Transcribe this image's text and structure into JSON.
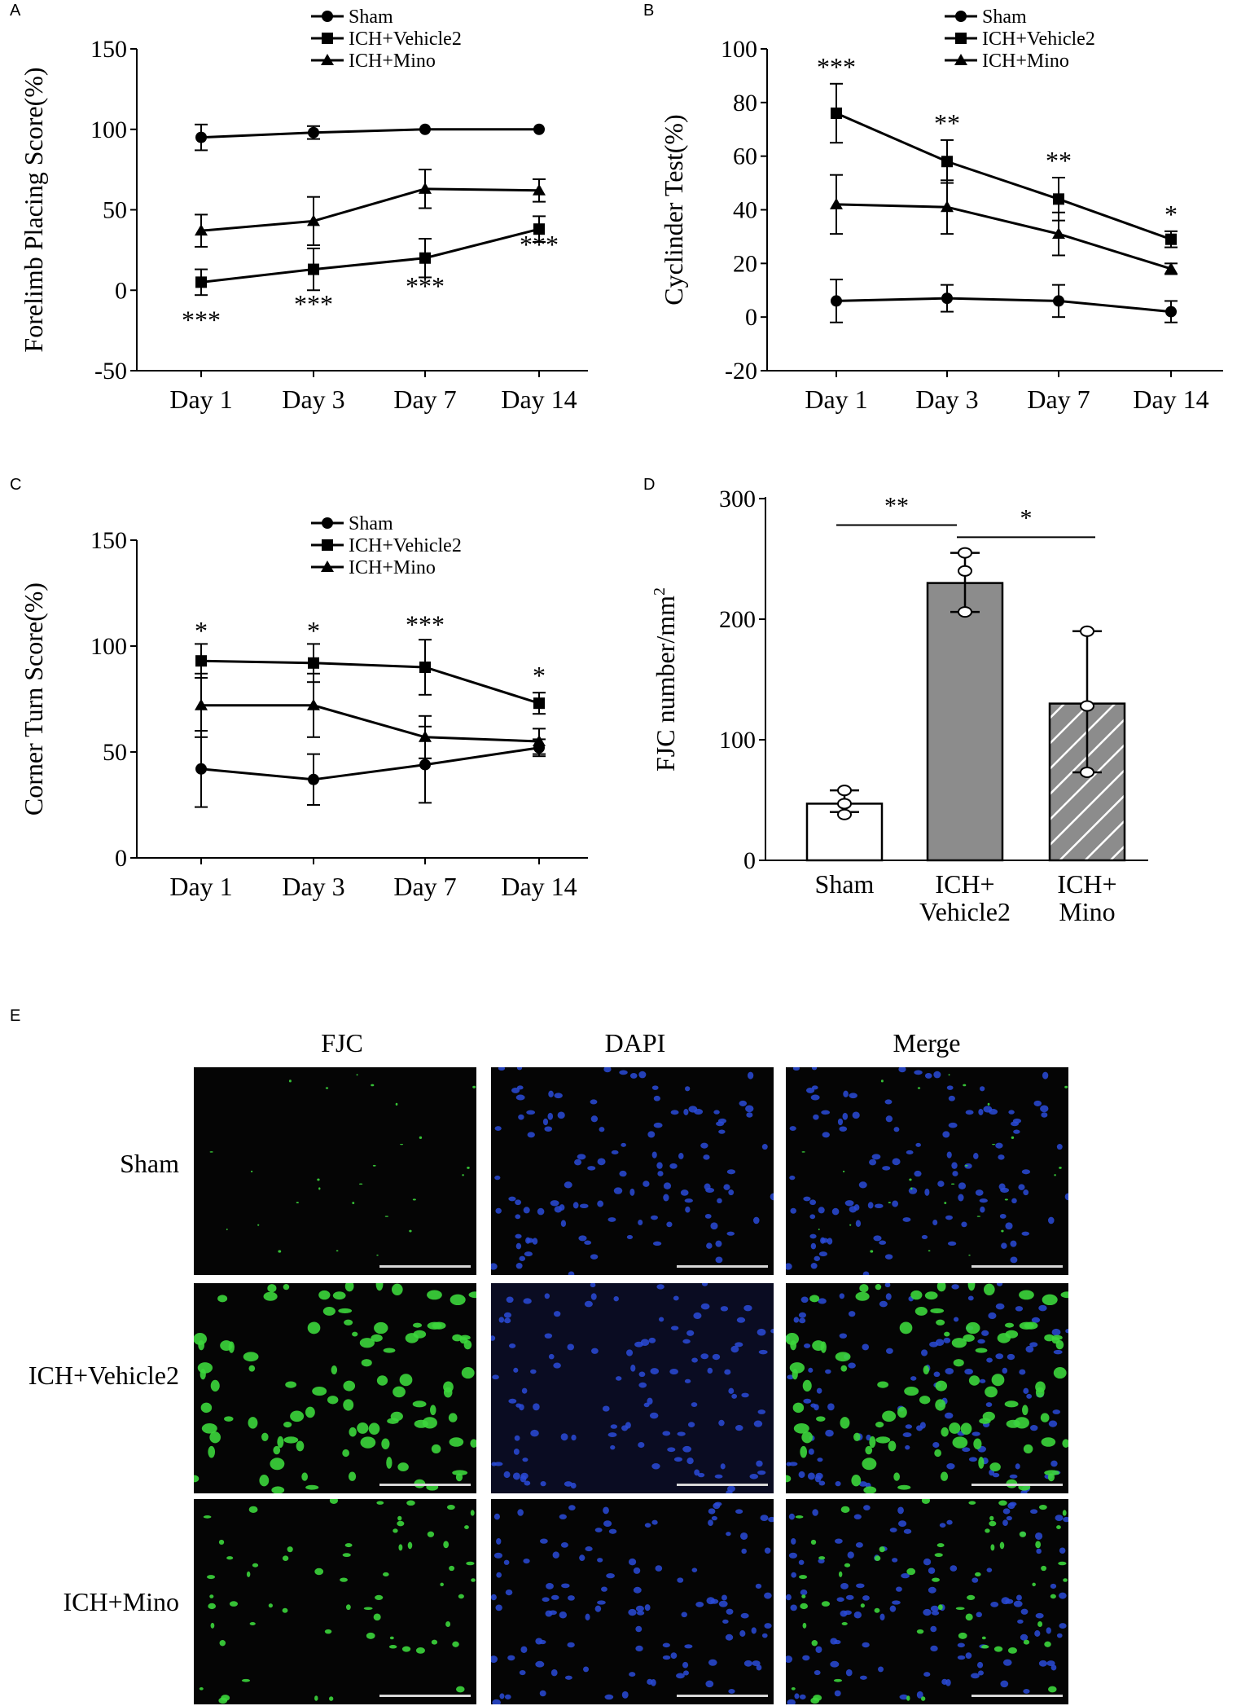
{
  "panels": {
    "A": "A",
    "B": "B",
    "C": "C",
    "D": "D",
    "E": "E"
  },
  "chart_data": [
    {
      "id": "A",
      "type": "line",
      "ylabel": "Forelimb Placing Score(%)",
      "categories": [
        "Day 1",
        "Day 3",
        "Day 7",
        "Day 14"
      ],
      "ylim": [
        -50,
        150
      ],
      "yticks": [
        -50,
        0,
        50,
        100,
        150
      ],
      "legend": [
        "Sham",
        "ICH+Vehicle2",
        "ICH+Mino"
      ],
      "series": [
        {
          "name": "Sham",
          "marker": "circle",
          "values": [
            95,
            98,
            100,
            100
          ],
          "err": [
            8,
            4,
            0,
            0
          ]
        },
        {
          "name": "ICH+Vehicle2",
          "marker": "square",
          "values": [
            5,
            13,
            20,
            38
          ],
          "err": [
            8,
            13,
            12,
            8
          ]
        },
        {
          "name": "ICH+Mino",
          "marker": "triangle",
          "values": [
            37,
            43,
            63,
            62
          ],
          "err": [
            10,
            15,
            12,
            7
          ]
        }
      ],
      "annotations": [
        {
          "text": "***",
          "x": 0,
          "y": -24
        },
        {
          "text": "***",
          "x": 1,
          "y": -14
        },
        {
          "text": "***",
          "x": 2,
          "y": -3
        },
        {
          "text": "***",
          "x": 3,
          "y": 23
        }
      ]
    },
    {
      "id": "B",
      "type": "line",
      "ylabel": "Cyclinder Test(%)",
      "categories": [
        "Day 1",
        "Day 3",
        "Day 7",
        "Day 14"
      ],
      "ylim": [
        -20,
        100
      ],
      "yticks": [
        -20,
        0,
        20,
        40,
        60,
        80,
        100
      ],
      "legend": [
        "Sham",
        "ICH+Vehicle2",
        "ICH+Mino"
      ],
      "series": [
        {
          "name": "Sham",
          "marker": "circle",
          "values": [
            6,
            7,
            6,
            2
          ],
          "err": [
            8,
            5,
            6,
            4
          ]
        },
        {
          "name": "ICH+Vehicle2",
          "marker": "square",
          "values": [
            76,
            58,
            44,
            29
          ],
          "err": [
            11,
            8,
            8,
            3
          ]
        },
        {
          "name": "ICH+Mino",
          "marker": "triangle",
          "values": [
            42,
            41,
            31,
            18
          ],
          "err": [
            11,
            10,
            8,
            2
          ]
        }
      ],
      "annotations": [
        {
          "text": "***",
          "x": 0,
          "y": 90
        },
        {
          "text": "**",
          "x": 1,
          "y": 69
        },
        {
          "text": "**",
          "x": 2,
          "y": 55
        },
        {
          "text": "*",
          "x": 3,
          "y": 35
        }
      ]
    },
    {
      "id": "C",
      "type": "line",
      "ylabel": "Corner Turn Score(%)",
      "categories": [
        "Day 1",
        "Day 3",
        "Day 7",
        "Day 14"
      ],
      "ylim": [
        0,
        150
      ],
      "yticks": [
        0,
        50,
        100,
        150
      ],
      "legend": [
        "Sham",
        "ICH+Vehicle2",
        "ICH+Mino"
      ],
      "series": [
        {
          "name": "Sham",
          "marker": "circle",
          "values": [
            42,
            37,
            44,
            52
          ],
          "err": [
            18,
            12,
            18,
            4
          ]
        },
        {
          "name": "ICH+Vehicle2",
          "marker": "square",
          "values": [
            93,
            92,
            90,
            73
          ],
          "err": [
            8,
            9,
            13,
            5
          ]
        },
        {
          "name": "ICH+Mino",
          "marker": "triangle",
          "values": [
            72,
            72,
            57,
            55
          ],
          "err": [
            15,
            15,
            10,
            6
          ]
        }
      ],
      "annotations": [
        {
          "text": "*",
          "x": 0,
          "y": 103
        },
        {
          "text": "*",
          "x": 1,
          "y": 103
        },
        {
          "text": "***",
          "x": 2,
          "y": 106
        },
        {
          "text": "*",
          "x": 3,
          "y": 82
        }
      ]
    },
    {
      "id": "D",
      "type": "bar",
      "ylabel": "FJC number/mm",
      "ylabel_sup": "2",
      "categories": [
        [
          "Sham"
        ],
        [
          "ICH+",
          "Vehicle2"
        ],
        [
          "ICH+",
          "Mino"
        ]
      ],
      "ylim": [
        0,
        300
      ],
      "yticks": [
        0,
        100,
        200,
        300
      ],
      "values": [
        47,
        230,
        130
      ],
      "err_upper": [
        58,
        255,
        190
      ],
      "err_lower": [
        40,
        206,
        73
      ],
      "points": [
        [
          58,
          47,
          38
        ],
        [
          255,
          240,
          206
        ],
        [
          190,
          128,
          73
        ]
      ],
      "fills": [
        "#ffffff",
        "#8c8c8c",
        "hatch"
      ],
      "significance": [
        {
          "text": "**",
          "from": 0,
          "to": 1,
          "y": 278
        },
        {
          "text": "*",
          "from": 1,
          "to": 2,
          "y": 268
        }
      ]
    }
  ],
  "micrographs": {
    "columns": [
      "FJC",
      "DAPI",
      "Merge"
    ],
    "rows": [
      "Sham",
      "ICH+Vehicle2",
      "ICH+Mino"
    ]
  },
  "colors": {
    "fjc_green": "#3cd63c",
    "dapi_blue": "#2a4bd8",
    "background": "#050505"
  }
}
